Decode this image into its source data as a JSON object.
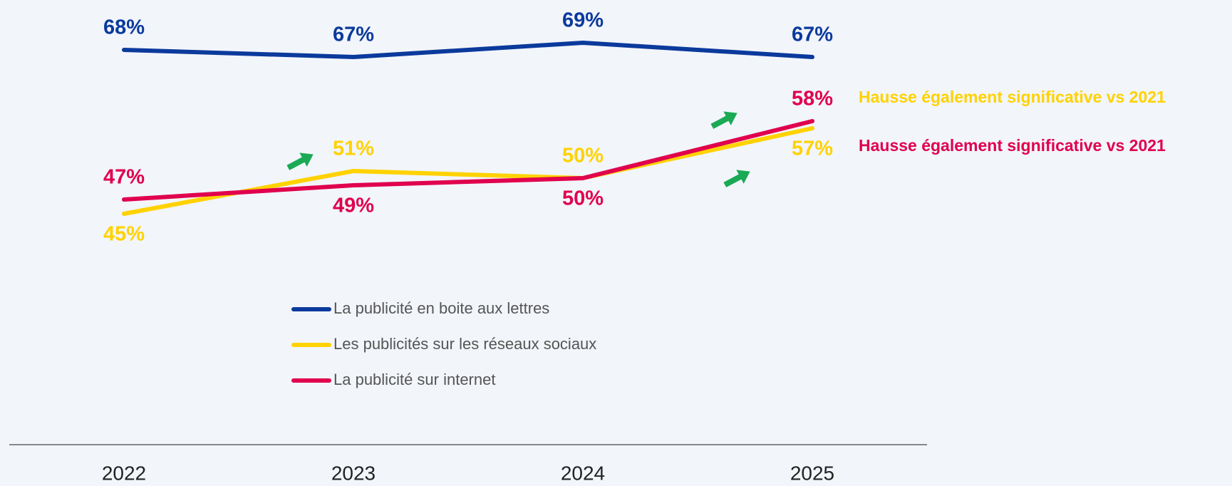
{
  "chart_data": {
    "type": "line",
    "categories": [
      "2022",
      "2023",
      "2024",
      "2025"
    ],
    "series": [
      {
        "name": "La publicité en boite aux lettres",
        "color": "#0b3a9c",
        "values": [
          68,
          67,
          69,
          67
        ],
        "value_labels": [
          "68%",
          "67%",
          "69%",
          "67%"
        ]
      },
      {
        "name": "Les publicités sur les réseaux sociaux",
        "color": "#ffd200",
        "values": [
          45,
          51,
          50,
          57
        ],
        "value_labels": [
          "45%",
          "51%",
          "50%",
          "57%"
        ]
      },
      {
        "name": "La publicité sur internet",
        "color": "#e0004d",
        "values": [
          47,
          49,
          50,
          58
        ],
        "value_labels": [
          "47%",
          "49%",
          "50%",
          "58%"
        ]
      }
    ],
    "annotations": [
      {
        "text": "Hausse également significative vs 2021",
        "color": "#ffd200"
      },
      {
        "text": "Hausse également significative vs 2021",
        "color": "#e0004d"
      }
    ]
  }
}
